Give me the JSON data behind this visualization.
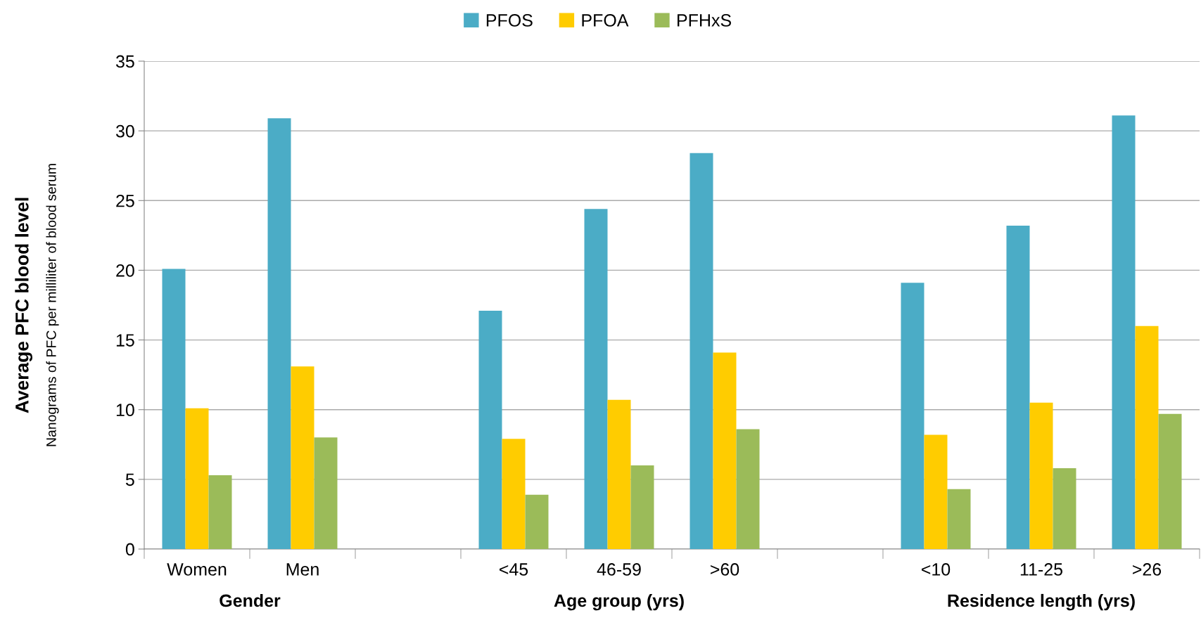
{
  "chart_data": {
    "type": "bar",
    "ylabel": "Average PFC blood level",
    "categories": [
      "Women",
      "Men",
      null,
      "<45",
      "46-59",
      ">60",
      null,
      "<10",
      "11-25",
      ">26"
    ],
    "series": [
      {
        "name": "PFOS",
        "color": "#4bacc6",
        "values": [
          20.1,
          30.9,
          null,
          17.1,
          24.4,
          28.4,
          null,
          19.1,
          23.2,
          31.1
        ]
      },
      {
        "name": "PFOA",
        "color": "#ffcc00",
        "values": [
          10.1,
          13.1,
          null,
          7.9,
          10.7,
          14.1,
          null,
          8.2,
          10.5,
          16.0
        ]
      },
      {
        "name": "PFHxS",
        "color": "#9bbb59",
        "values": [
          5.3,
          8.0,
          null,
          3.9,
          6.0,
          8.6,
          null,
          4.3,
          5.8,
          9.7
        ]
      }
    ],
    "ylim": [
      0,
      35
    ],
    "yticks": [
      0,
      5,
      10,
      15,
      20,
      25,
      30,
      35
    ],
    "grid": "y",
    "legend": "top",
    "annotations": [
      "Nanograms of PFC per milliliter of blood serum",
      "Gender",
      "Age group (yrs)",
      "Residence length (yrs)"
    ]
  }
}
